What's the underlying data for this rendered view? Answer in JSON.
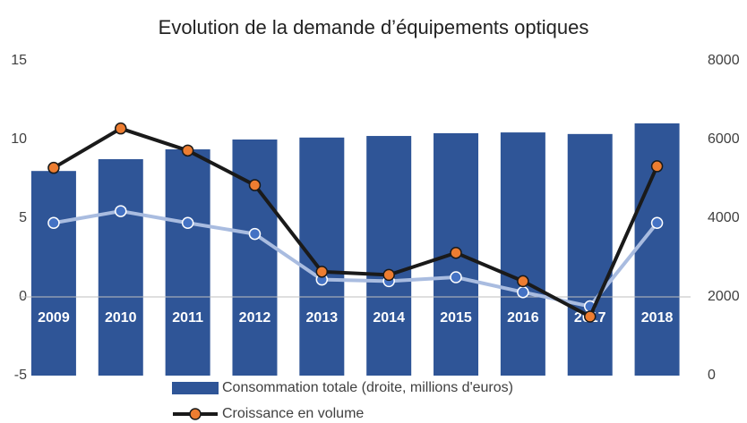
{
  "chart_data": {
    "type": "bar-line",
    "title": "Evolution de la demande d’équipements optiques",
    "categories": [
      "2009",
      "2010",
      "2011",
      "2012",
      "2013",
      "2014",
      "2015",
      "2016",
      "2017",
      "2018"
    ],
    "series": [
      {
        "name": "Consommation totale (droite, millions d'euros)",
        "type": "bar",
        "axis": "y2",
        "color": "#2f5597",
        "values": [
          5200,
          5500,
          5750,
          6000,
          6050,
          6090,
          6160,
          6180,
          6140,
          6410
        ]
      },
      {
        "name": "Croissance en volume",
        "type": "line",
        "color": "#1a1a1a",
        "marker_color": "#ed7d31",
        "values": [
          8.2,
          10.7,
          9.3,
          7.1,
          1.6,
          1.4,
          2.8,
          1.0,
          -1.25,
          8.3
        ]
      },
      {
        "type": "line",
        "color": "#a9bce0",
        "marker_color": "#4472c4",
        "values": [
          4.7,
          5.45,
          4.7,
          4.0,
          1.1,
          1.0,
          1.25,
          0.3,
          -0.6,
          4.7
        ]
      }
    ],
    "ylim": [
      -5,
      15
    ],
    "yticks": [
      -5,
      0,
      5,
      10,
      15
    ],
    "y2lim": [
      0,
      8000
    ],
    "y2ticks": [
      0,
      2000,
      4000,
      6000,
      8000
    ],
    "grid": false
  }
}
